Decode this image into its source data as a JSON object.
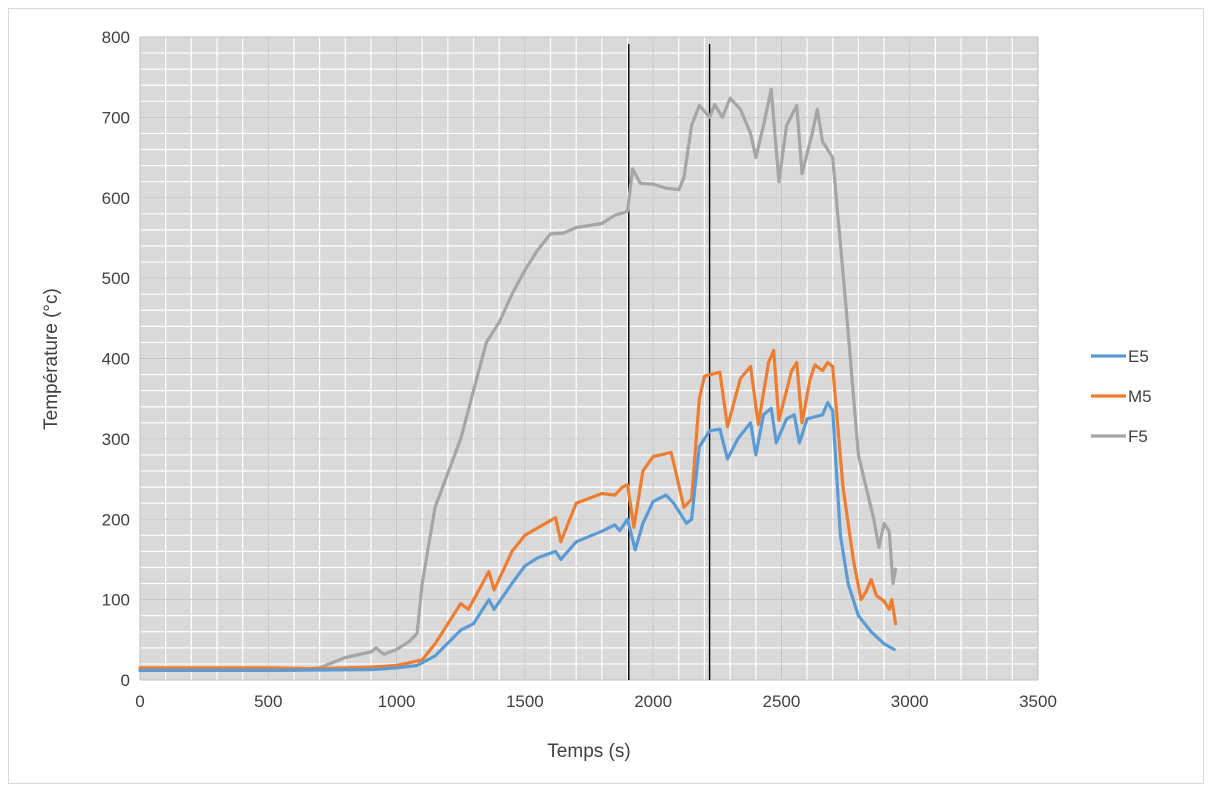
{
  "chart_data": {
    "type": "line",
    "title": "",
    "xlabel": "Temps (s)",
    "ylabel": "Température (°c)",
    "xlim": [
      0,
      3500
    ],
    "ylim": [
      0,
      800
    ],
    "x_ticks": [
      0,
      500,
      1000,
      1500,
      2000,
      2500,
      3000,
      3500
    ],
    "y_ticks": [
      0,
      100,
      200,
      300,
      400,
      500,
      600,
      700,
      800
    ],
    "x_ticks_labels": [
      "0",
      "500",
      "1000",
      "1500",
      "2000",
      "2500",
      "3000",
      "3500"
    ],
    "y_ticks_labels": [
      "0",
      "100",
      "200",
      "300",
      "400",
      "500",
      "600",
      "700",
      "800"
    ],
    "grid": true,
    "legend_position": "right",
    "vertical_markers": [
      1905,
      2220
    ],
    "series": [
      {
        "name": "E5",
        "color": "#5b9bd5",
        "points": [
          [
            0,
            12
          ],
          [
            500,
            12
          ],
          [
            900,
            13
          ],
          [
            1000,
            15
          ],
          [
            1080,
            18
          ],
          [
            1150,
            30
          ],
          [
            1250,
            62
          ],
          [
            1300,
            70
          ],
          [
            1360,
            100
          ],
          [
            1380,
            88
          ],
          [
            1450,
            120
          ],
          [
            1500,
            142
          ],
          [
            1550,
            152
          ],
          [
            1620,
            160
          ],
          [
            1640,
            150
          ],
          [
            1700,
            172
          ],
          [
            1800,
            185
          ],
          [
            1850,
            193
          ],
          [
            1870,
            186
          ],
          [
            1900,
            200
          ],
          [
            1930,
            162
          ],
          [
            1960,
            195
          ],
          [
            2000,
            222
          ],
          [
            2050,
            230
          ],
          [
            2080,
            220
          ],
          [
            2130,
            195
          ],
          [
            2150,
            200
          ],
          [
            2180,
            290
          ],
          [
            2220,
            310
          ],
          [
            2260,
            312
          ],
          [
            2290,
            275
          ],
          [
            2330,
            300
          ],
          [
            2380,
            320
          ],
          [
            2400,
            280
          ],
          [
            2430,
            330
          ],
          [
            2460,
            338
          ],
          [
            2480,
            295
          ],
          [
            2520,
            325
          ],
          [
            2550,
            330
          ],
          [
            2570,
            295
          ],
          [
            2600,
            325
          ],
          [
            2660,
            330
          ],
          [
            2680,
            345
          ],
          [
            2700,
            335
          ],
          [
            2730,
            180
          ],
          [
            2760,
            120
          ],
          [
            2800,
            80
          ],
          [
            2850,
            60
          ],
          [
            2900,
            45
          ],
          [
            2940,
            38
          ]
        ]
      },
      {
        "name": "M5",
        "color": "#ed7d31",
        "points": [
          [
            0,
            15
          ],
          [
            500,
            15
          ],
          [
            700,
            14
          ],
          [
            900,
            16
          ],
          [
            1000,
            18
          ],
          [
            1100,
            25
          ],
          [
            1150,
            45
          ],
          [
            1250,
            95
          ],
          [
            1280,
            88
          ],
          [
            1360,
            135
          ],
          [
            1380,
            112
          ],
          [
            1450,
            160
          ],
          [
            1500,
            180
          ],
          [
            1620,
            202
          ],
          [
            1640,
            172
          ],
          [
            1700,
            220
          ],
          [
            1800,
            232
          ],
          [
            1850,
            230
          ],
          [
            1880,
            240
          ],
          [
            1900,
            243
          ],
          [
            1925,
            190
          ],
          [
            1960,
            260
          ],
          [
            2000,
            278
          ],
          [
            2070,
            283
          ],
          [
            2080,
            270
          ],
          [
            2120,
            215
          ],
          [
            2150,
            225
          ],
          [
            2180,
            350
          ],
          [
            2200,
            378
          ],
          [
            2260,
            383
          ],
          [
            2290,
            315
          ],
          [
            2340,
            375
          ],
          [
            2380,
            390
          ],
          [
            2410,
            318
          ],
          [
            2450,
            395
          ],
          [
            2470,
            410
          ],
          [
            2490,
            323
          ],
          [
            2540,
            385
          ],
          [
            2560,
            395
          ],
          [
            2580,
            320
          ],
          [
            2610,
            372
          ],
          [
            2630,
            392
          ],
          [
            2660,
            385
          ],
          [
            2680,
            395
          ],
          [
            2700,
            390
          ],
          [
            2740,
            240
          ],
          [
            2780,
            150
          ],
          [
            2810,
            100
          ],
          [
            2830,
            110
          ],
          [
            2850,
            125
          ],
          [
            2870,
            105
          ],
          [
            2900,
            98
          ],
          [
            2920,
            88
          ],
          [
            2930,
            100
          ],
          [
            2945,
            70
          ]
        ]
      },
      {
        "name": "F5",
        "color": "#a5a5a5",
        "points": [
          [
            0,
            12
          ],
          [
            400,
            12
          ],
          [
            600,
            12
          ],
          [
            700,
            15
          ],
          [
            800,
            28
          ],
          [
            900,
            35
          ],
          [
            920,
            40
          ],
          [
            950,
            32
          ],
          [
            1000,
            38
          ],
          [
            1050,
            48
          ],
          [
            1080,
            58
          ],
          [
            1100,
            120
          ],
          [
            1150,
            215
          ],
          [
            1250,
            300
          ],
          [
            1300,
            360
          ],
          [
            1350,
            420
          ],
          [
            1400,
            445
          ],
          [
            1450,
            480
          ],
          [
            1500,
            510
          ],
          [
            1550,
            535
          ],
          [
            1600,
            555
          ],
          [
            1650,
            556
          ],
          [
            1700,
            563
          ],
          [
            1800,
            568
          ],
          [
            1850,
            578
          ],
          [
            1900,
            583
          ],
          [
            1920,
            636
          ],
          [
            1950,
            618
          ],
          [
            2000,
            617
          ],
          [
            2050,
            612
          ],
          [
            2100,
            610
          ],
          [
            2120,
            625
          ],
          [
            2150,
            690
          ],
          [
            2180,
            715
          ],
          [
            2220,
            700
          ],
          [
            2240,
            716
          ],
          [
            2270,
            700
          ],
          [
            2300,
            724
          ],
          [
            2340,
            710
          ],
          [
            2380,
            680
          ],
          [
            2400,
            650
          ],
          [
            2430,
            690
          ],
          [
            2460,
            735
          ],
          [
            2490,
            620
          ],
          [
            2520,
            690
          ],
          [
            2560,
            715
          ],
          [
            2580,
            630
          ],
          [
            2620,
            680
          ],
          [
            2640,
            710
          ],
          [
            2660,
            670
          ],
          [
            2700,
            650
          ],
          [
            2750,
            470
          ],
          [
            2800,
            280
          ],
          [
            2830,
            240
          ],
          [
            2860,
            200
          ],
          [
            2880,
            165
          ],
          [
            2900,
            195
          ],
          [
            2920,
            185
          ],
          [
            2935,
            120
          ],
          [
            2945,
            138
          ]
        ]
      }
    ]
  }
}
